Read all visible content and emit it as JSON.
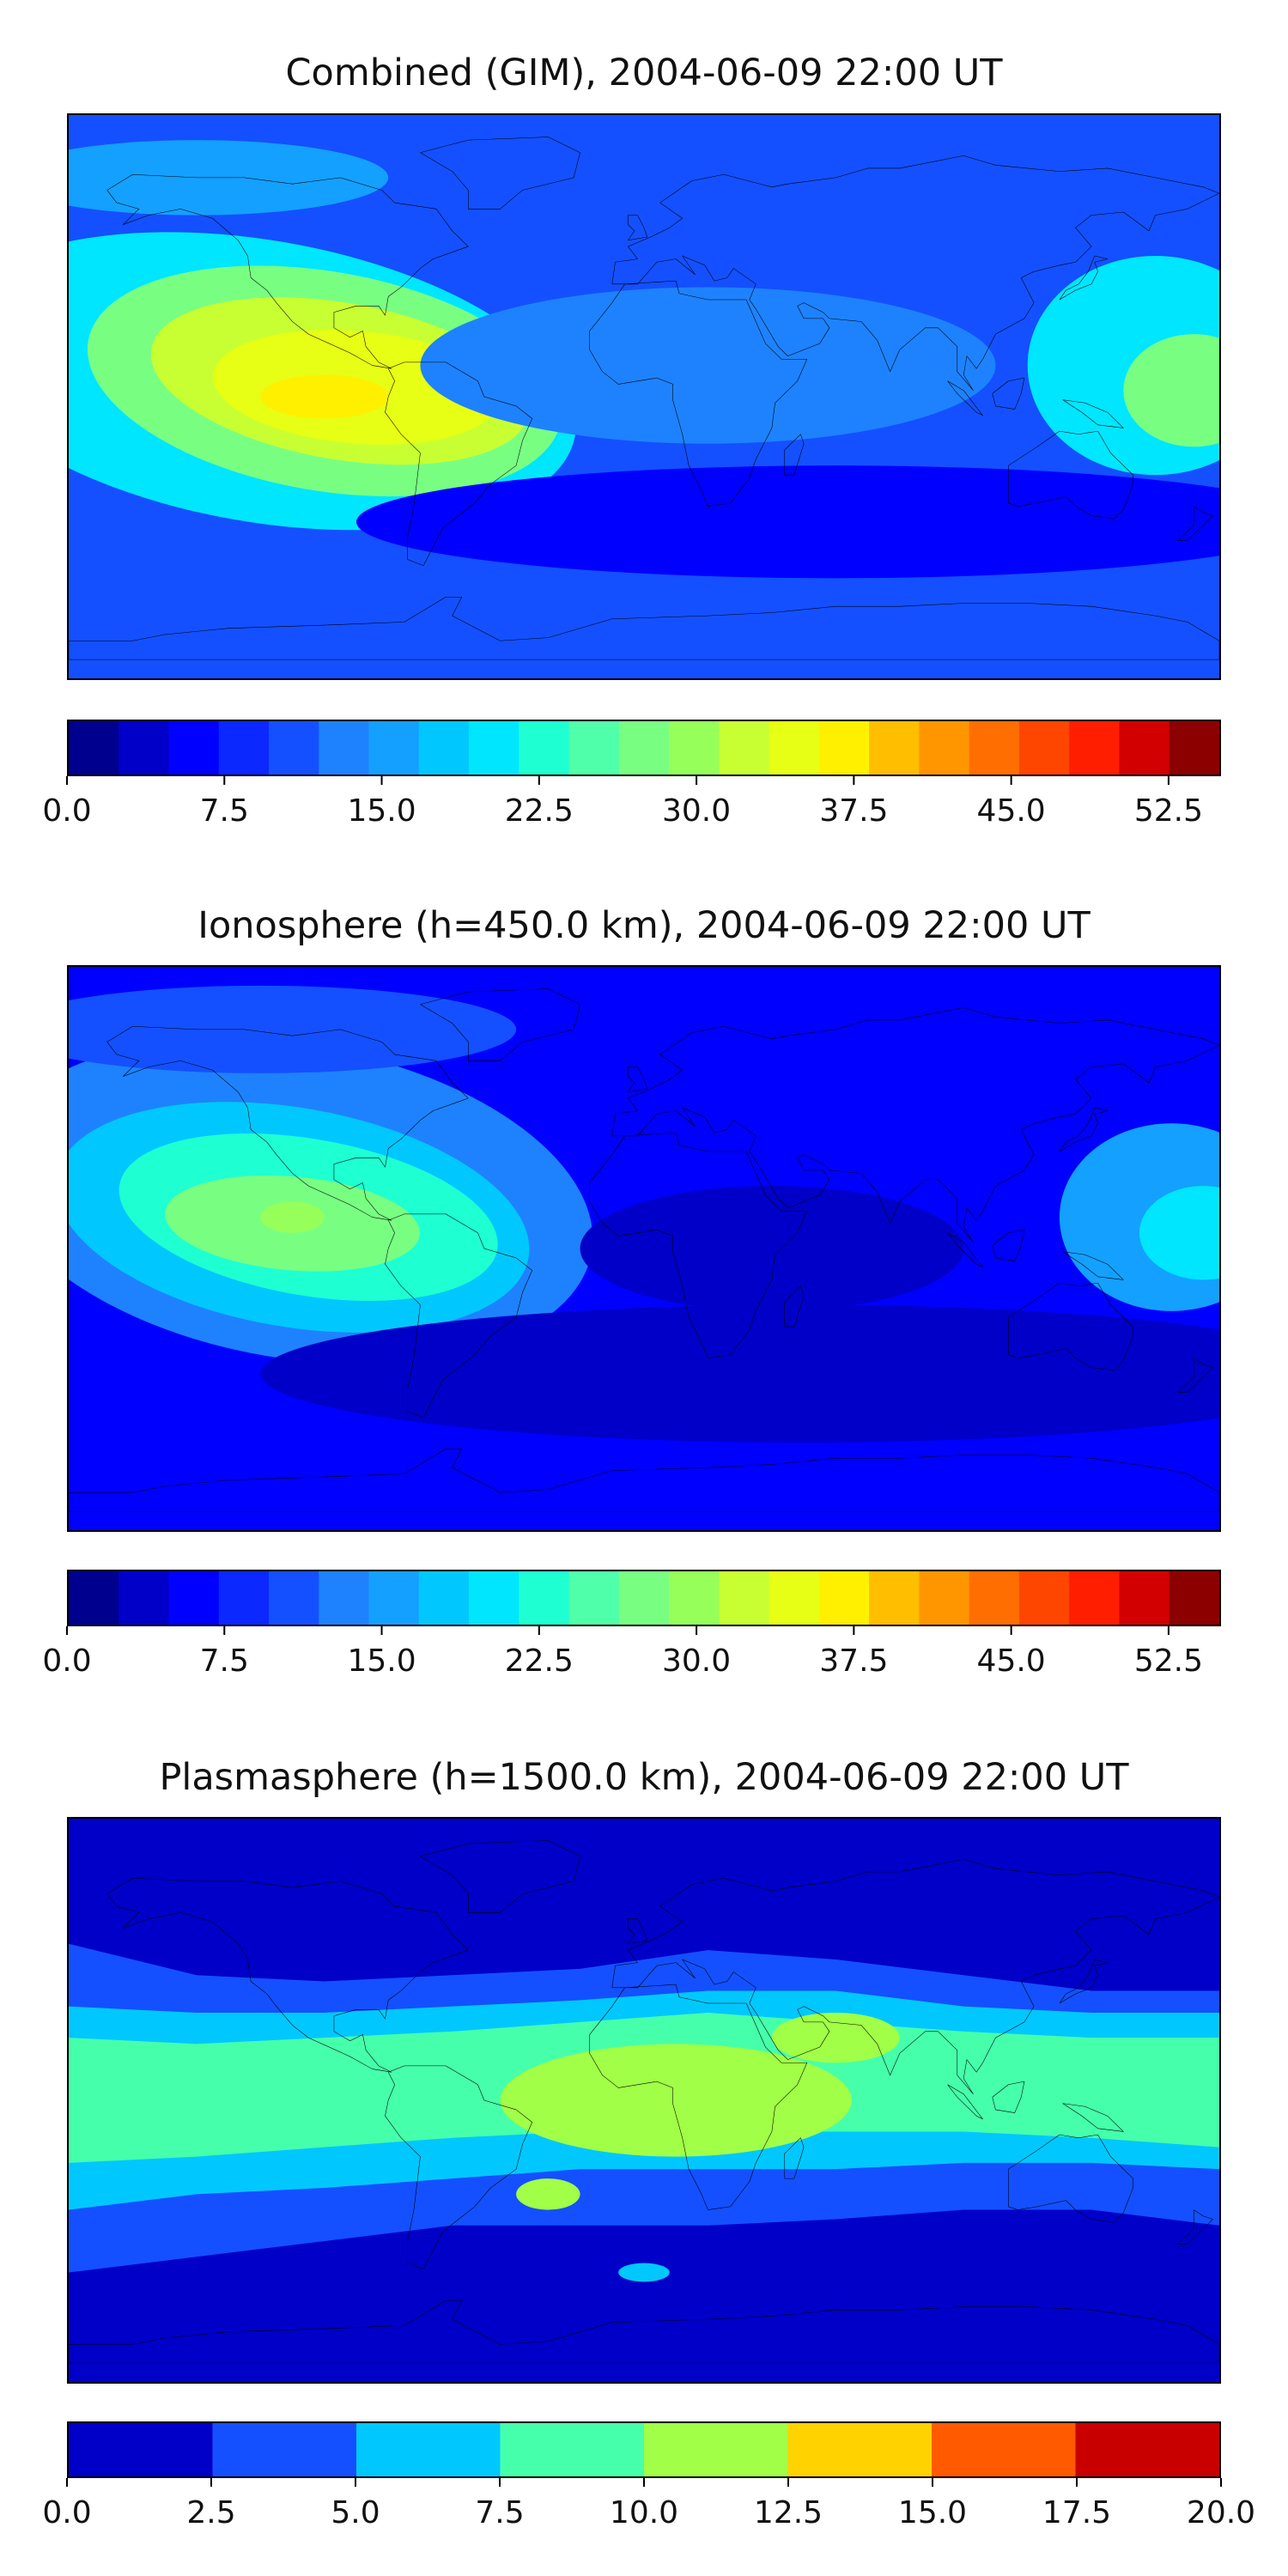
{
  "chart_data": [
    {
      "type": "contour-map",
      "title": "Combined (GIM), 2004-06-09 22:00 UT",
      "colorbar": {
        "min": 0.0,
        "max": 55.0,
        "step": 2.5,
        "tick_labels": [
          "0.0",
          "7.5",
          "15.0",
          "22.5",
          "30.0",
          "37.5",
          "45.0",
          "52.5"
        ],
        "tick_values": [
          0.0,
          7.5,
          15.0,
          22.5,
          30.0,
          37.5,
          45.0,
          52.5
        ],
        "colors": [
          "#00008f",
          "#0000c8",
          "#0000ff",
          "#0a28ff",
          "#1450ff",
          "#1e82ff",
          "#14a0ff",
          "#00c8ff",
          "#00e6ff",
          "#1effd2",
          "#50ffaa",
          "#78ff82",
          "#96ff5a",
          "#c8ff32",
          "#e6ff14",
          "#fff000",
          "#ffbe00",
          "#ff9600",
          "#ff6e00",
          "#ff4600",
          "#ff1e00",
          "#d20000",
          "#8c0000"
        ]
      },
      "background_level": 4,
      "regions": [
        {
          "lon": -120,
          "lat": 5,
          "rx": 100,
          "ry": 45,
          "level": 8,
          "rot": 10
        },
        {
          "lon": -100,
          "lat": 5,
          "rx": 75,
          "ry": 35,
          "level": 11,
          "rot": 10
        },
        {
          "lon": -95,
          "lat": 5,
          "rx": 60,
          "ry": 25,
          "level": 13,
          "rot": 10
        },
        {
          "lon": -90,
          "lat": 3,
          "rx": 45,
          "ry": 18,
          "level": 14,
          "rot": 5
        },
        {
          "lon": -100,
          "lat": 0,
          "rx": 20,
          "ry": 7,
          "level": 15,
          "rot": 0
        },
        {
          "lon": -140,
          "lat": 70,
          "rx": 60,
          "ry": 12,
          "level": 6,
          "rot": 0
        },
        {
          "lon": 160,
          "lat": 10,
          "rx": 40,
          "ry": 35,
          "level": 8,
          "rot": 0
        },
        {
          "lon": 172,
          "lat": 2,
          "rx": 22,
          "ry": 18,
          "level": 11,
          "rot": 0
        },
        {
          "lon": 20,
          "lat": 10,
          "rx": 90,
          "ry": 25,
          "level": 5,
          "rot": 0
        },
        {
          "lon": 60,
          "lat": -40,
          "rx": 150,
          "ry": 18,
          "level": 2,
          "rot": 0
        }
      ]
    },
    {
      "type": "contour-map",
      "title": "Ionosphere  (h=450.0 km), 2004-06-09 22:00 UT",
      "colorbar": {
        "min": 0.0,
        "max": 55.0,
        "step": 2.5,
        "tick_labels": [
          "0.0",
          "7.5",
          "15.0",
          "22.5",
          "30.0",
          "37.5",
          "45.0",
          "52.5"
        ],
        "tick_values": [
          0.0,
          7.5,
          15.0,
          22.5,
          30.0,
          37.5,
          45.0,
          52.5
        ],
        "colors": [
          "#00008f",
          "#0000c8",
          "#0000ff",
          "#0a28ff",
          "#1450ff",
          "#1e82ff",
          "#14a0ff",
          "#00c8ff",
          "#00e6ff",
          "#1effd2",
          "#50ffaa",
          "#78ff82",
          "#96ff5a",
          "#c8ff32",
          "#e6ff14",
          "#fff000",
          "#ffbe00",
          "#ff9600",
          "#ff6e00",
          "#ff4600",
          "#ff1e00",
          "#d20000",
          "#8c0000"
        ]
      },
      "background_level": 2,
      "regions": [
        {
          "lon": -110,
          "lat": 15,
          "rx": 95,
          "ry": 50,
          "level": 5,
          "rot": 10
        },
        {
          "lon": -110,
          "lat": 10,
          "rx": 75,
          "ry": 35,
          "level": 7,
          "rot": 10
        },
        {
          "lon": -105,
          "lat": 10,
          "rx": 60,
          "ry": 25,
          "level": 9,
          "rot": 10
        },
        {
          "lon": -110,
          "lat": 8,
          "rx": 40,
          "ry": 15,
          "level": 11,
          "rot": 5
        },
        {
          "lon": -110,
          "lat": 10,
          "rx": 10,
          "ry": 5,
          "level": 12,
          "rot": 0
        },
        {
          "lon": 165,
          "lat": 10,
          "rx": 35,
          "ry": 30,
          "level": 6,
          "rot": 0
        },
        {
          "lon": 175,
          "lat": 5,
          "rx": 20,
          "ry": 15,
          "level": 8,
          "rot": 0
        },
        {
          "lon": -120,
          "lat": 70,
          "rx": 80,
          "ry": 14,
          "level": 4,
          "rot": 0
        },
        {
          "lon": 50,
          "lat": -40,
          "rx": 170,
          "ry": 22,
          "level": 1,
          "rot": 0
        },
        {
          "lon": 40,
          "lat": 0,
          "rx": 60,
          "ry": 20,
          "level": 1,
          "rot": 0
        }
      ]
    },
    {
      "type": "contour-map",
      "title": "Plasmasphere (h=1500.0 km), 2004-06-09 22:00 UT",
      "colorbar": {
        "min": 0.0,
        "max": 20.0,
        "step": 2.5,
        "tick_labels": [
          "0.0",
          "2.5",
          "5.0",
          "7.5",
          "10.0",
          "12.5",
          "15.0",
          "17.5",
          "20.0"
        ],
        "tick_values": [
          0.0,
          2.5,
          5.0,
          7.5,
          10.0,
          12.5,
          15.0,
          17.5,
          20.0
        ],
        "colors": [
          "#0000c8",
          "#1450ff",
          "#00c8ff",
          "#46ffaa",
          "#a0ff46",
          "#ffd200",
          "#ff5a00",
          "#c80000"
        ]
      },
      "background_level": 0,
      "bands": [
        {
          "level": 1,
          "top": [
            50,
            40,
            38,
            40,
            42,
            48,
            45,
            40,
            35,
            35
          ],
          "bottom": [
            -55,
            -50,
            -45,
            -40,
            -40,
            -40,
            -38,
            -35,
            -35,
            -40
          ]
        },
        {
          "level": 2,
          "top": [
            30,
            28,
            28,
            30,
            32,
            35,
            35,
            30,
            28,
            28
          ],
          "bottom": [
            -35,
            -30,
            -28,
            -25,
            -22,
            -22,
            -22,
            -20,
            -20,
            -22
          ]
        },
        {
          "level": 3,
          "top": [
            20,
            18,
            20,
            22,
            25,
            28,
            25,
            22,
            20,
            20
          ],
          "bottom": [
            -20,
            -18,
            -15,
            -12,
            -10,
            -10,
            -10,
            -10,
            -12,
            -15
          ]
        }
      ],
      "regions": [
        {
          "lon": 10,
          "lat": 0,
          "rx": 55,
          "ry": 18,
          "level": 4,
          "rot": 0
        },
        {
          "lon": 60,
          "lat": 20,
          "rx": 20,
          "ry": 8,
          "level": 4,
          "rot": 0
        },
        {
          "lon": -30,
          "lat": -30,
          "rx": 10,
          "ry": 5,
          "level": 4,
          "rot": 0
        },
        {
          "lon": 0,
          "lat": -55,
          "rx": 8,
          "ry": 3,
          "level": 2,
          "rot": 0
        }
      ]
    }
  ]
}
